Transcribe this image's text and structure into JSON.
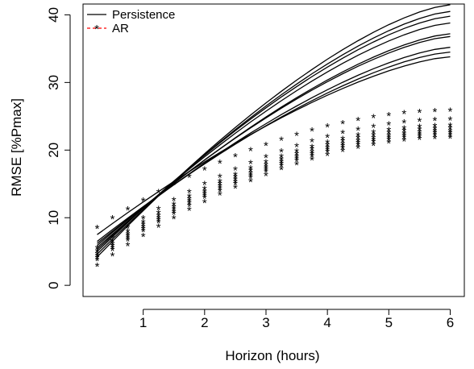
{
  "chart_data": {
    "type": "line",
    "xlabel": "Horizon (hours)",
    "ylabel": "RMSE [%Pmax]",
    "xlim": [
      0.25,
      6
    ],
    "ylim": [
      0,
      41
    ],
    "x_ticks": [
      1,
      2,
      3,
      4,
      5,
      6
    ],
    "y_ticks": [
      0,
      10,
      20,
      30,
      40
    ],
    "grid": false,
    "legend_position": "top-left",
    "legend": [
      {
        "label": "Persistence",
        "style": "line",
        "color": "#000000"
      },
      {
        "label": "AR",
        "style": "star-dashed",
        "color": "#ff0000"
      }
    ],
    "x": [
      0.25,
      0.5,
      0.75,
      1.0,
      1.25,
      1.5,
      1.75,
      2.0,
      2.25,
      2.5,
      2.75,
      3.0,
      3.25,
      3.5,
      3.75,
      4.0,
      4.25,
      4.5,
      4.75,
      5.0,
      5.25,
      5.5,
      5.75,
      6.0
    ],
    "persistence_endpoints": [
      {
        "start": 4.2,
        "end": 41.5
      },
      {
        "start": 4.6,
        "end": 40.5
      },
      {
        "start": 5.0,
        "end": 39.8
      },
      {
        "start": 5.3,
        "end": 38.8
      },
      {
        "start": 5.6,
        "end": 37.2
      },
      {
        "start": 5.9,
        "end": 36.8
      },
      {
        "start": 6.2,
        "end": 35.2
      },
      {
        "start": 6.5,
        "end": 34.5
      },
      {
        "start": 7.5,
        "end": 33.8
      }
    ],
    "ar_endpoints": [
      {
        "start": 8.5,
        "end": 25.8
      },
      {
        "start": 5.5,
        "end": 24.5
      },
      {
        "start": 5.0,
        "end": 23.6
      },
      {
        "start": 4.6,
        "end": 23.2
      },
      {
        "start": 4.3,
        "end": 22.8
      },
      {
        "start": 4.0,
        "end": 22.5
      },
      {
        "start": 3.7,
        "end": 22.2
      },
      {
        "start": 2.9,
        "end": 21.8
      }
    ]
  }
}
